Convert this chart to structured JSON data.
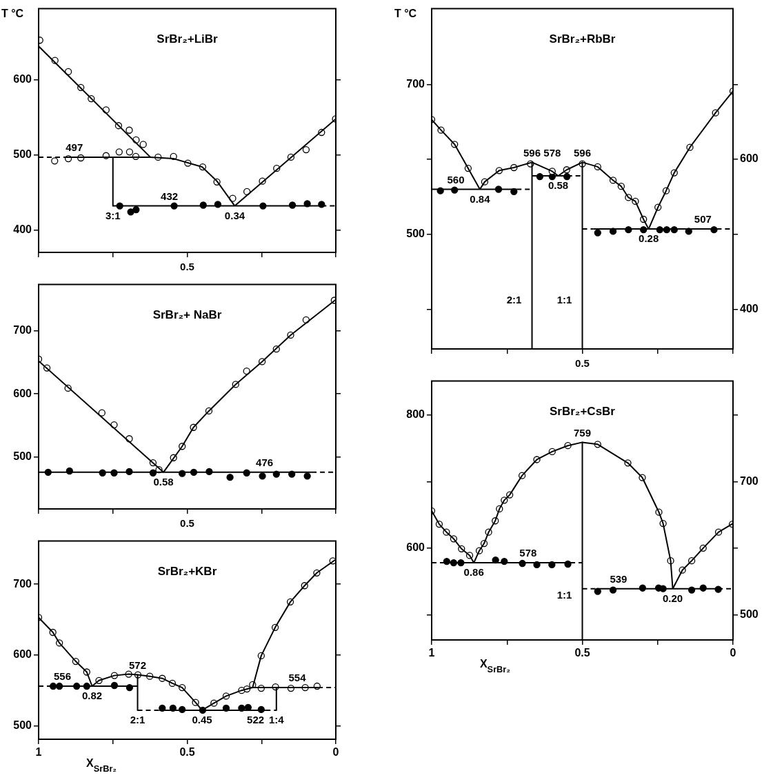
{
  "chart_data": [
    {
      "type": "scatter",
      "title": "SrBr₂+LiBr",
      "ylabel": "T °C",
      "tick_labels": "y",
      "xlim": [
        1,
        0
      ],
      "xticks": [
        {
          "value": 1,
          "label": null
        },
        {
          "value": 0.75,
          "label": null
        },
        0.5,
        {
          "value": 0.25,
          "label": null
        },
        {
          "value": 0,
          "label": null
        }
      ],
      "ylim": [
        370,
        695
      ],
      "yticks": [
        400,
        500,
        600
      ],
      "series": [
        {
          "type": "line",
          "color": "#000000",
          "marker": "none",
          "x": [
            1,
            0.624
          ],
          "values": [
            645,
            497
          ]
        },
        {
          "type": "line",
          "color": "#000000",
          "marker": "none",
          "x": [
            0.9,
            0.624,
            0.546,
            0.45,
            0.4,
            0.34
          ],
          "values": [
            497,
            497,
            495,
            484,
            465,
            432
          ]
        },
        {
          "type": "line",
          "color": "#000000",
          "marker": "none",
          "x": [
            0.34,
            0
          ],
          "values": [
            432,
            548
          ]
        },
        {
          "type": "line",
          "color": "#000000",
          "marker": "none",
          "line_style": "dashed",
          "x": [
            1,
            0.9
          ],
          "values": [
            497,
            497
          ]
        },
        {
          "type": "line",
          "color": "#000000",
          "marker": "none",
          "x": [
            0.75,
            0.75
          ],
          "values": [
            497,
            432
          ]
        },
        {
          "type": "line",
          "color": "#000000",
          "marker": "none",
          "x": [
            0.75,
            0.048
          ],
          "values": [
            432,
            432
          ]
        },
        {
          "type": "line",
          "color": "#000000",
          "marker": "none",
          "line_style": "dashed",
          "x": [
            0.048,
            0
          ],
          "values": [
            432,
            432
          ]
        },
        {
          "type": "scatter",
          "color": "#ffffff",
          "marker": "circle",
          "x": [
            0.996,
            0.945,
            0.9,
            0.858,
            0.823,
            0.773,
            0.731,
            0.695,
            0.672,
            0.648,
            0.946,
            0.9,
            0.858,
            0.773,
            0.729,
            0.694,
            0.673,
            0.598,
            0.546,
            0.498,
            0.448,
            0.4,
            0.347,
            0.299,
            0.247,
            0.199,
            0.151,
            0.1,
            0.048,
            0.001
          ],
          "values": [
            653,
            626,
            611,
            590,
            575,
            560,
            539,
            533,
            520,
            514,
            492,
            495,
            496,
            499,
            504,
            504,
            498,
            497,
            498,
            489,
            484,
            464,
            442,
            451,
            465,
            482,
            497,
            507,
            530,
            548
          ]
        },
        {
          "type": "scatter",
          "color": "#000000",
          "marker": "circle",
          "x": [
            0.727,
            0.69,
            0.672,
            0.544,
            0.446,
            0.397,
            0.245,
            0.146,
            0.096,
            0.048
          ],
          "values": [
            432,
            424,
            427,
            432,
            433,
            434,
            432,
            433,
            435,
            434
          ]
        }
      ],
      "annotations": [
        "0.5",
        {
          "text": "497",
          "x": 0.88,
          "y": 497
        },
        {
          "text": "432",
          "x": 0.56,
          "y": 432
        },
        {
          "text": "0.34",
          "x": 0.34,
          "y": 432
        },
        {
          "text": "3:1",
          "x": 0.75,
          "y": 432
        }
      ]
    },
    {
      "type": "scatter",
      "title": "SrBr₂+ NaBr",
      "tick_labels": "y",
      "xlim": [
        1,
        0
      ],
      "xticks": [
        {
          "value": 1,
          "label": null
        },
        {
          "value": 0.75,
          "label": null
        },
        0.5,
        {
          "value": 0.25,
          "label": null
        },
        {
          "value": 0,
          "label": null
        }
      ],
      "ylim": [
        418,
        773
      ],
      "yticks": [
        500,
        600,
        700
      ],
      "series": [
        {
          "type": "line",
          "color": "#000000",
          "marker": "none",
          "x": [
            1,
            0.58
          ],
          "values": [
            652,
            476
          ]
        },
        {
          "type": "line",
          "color": "#000000",
          "marker": "none",
          "x": [
            0.58,
            0.517,
            0.479,
            0.427,
            0.337,
            0.248,
            0.152,
            0
          ],
          "values": [
            476,
            517,
            547,
            573,
            615,
            651,
            693,
            749
          ]
        },
        {
          "type": "line",
          "color": "#000000",
          "marker": "none",
          "x": [
            1,
            0.081
          ],
          "values": [
            476,
            476
          ]
        },
        {
          "type": "line",
          "color": "#000000",
          "marker": "none",
          "line_style": "dashed",
          "x": [
            0.081,
            0
          ],
          "values": [
            476,
            476
          ]
        },
        {
          "type": "scatter",
          "color": "#ffffff",
          "marker": "circle",
          "x": [
            1,
            0.972,
            0.901,
            0.787,
            0.746,
            0.695,
            0.615,
            0.595,
            0.546,
            0.517,
            0.479,
            0.427,
            0.337,
            0.3,
            0.248,
            0.2,
            0.152,
            0.1,
            0.005
          ],
          "values": [
            655,
            641,
            609,
            570,
            551,
            529,
            491,
            480,
            499,
            517,
            547,
            573,
            615,
            636,
            651,
            671,
            693,
            717,
            748
          ]
        },
        {
          "type": "scatter",
          "color": "#000000",
          "marker": "circle",
          "x": [
            0.968,
            0.896,
            0.785,
            0.746,
            0.695,
            0.615,
            0.517,
            0.478,
            0.426,
            0.356,
            0.3,
            0.247,
            0.2,
            0.148,
            0.096
          ],
          "values": [
            476,
            478,
            475,
            475,
            477,
            475,
            474,
            476,
            477,
            468,
            475,
            470,
            473,
            473,
            470
          ]
        }
      ],
      "annotations": [
        "0.5",
        {
          "text": "476",
          "x": 0.24,
          "y": 476
        },
        {
          "text": "0.58",
          "x": 0.58,
          "y": 476
        }
      ]
    },
    {
      "type": "scatter",
      "title": "SrBr₂+KBr",
      "xlabel": "X$_{SrBr₂}$",
      "xlim": [
        1,
        0
      ],
      "xticks": [
        1,
        {
          "value": 0.75,
          "label": null
        },
        0.5,
        {
          "value": 0.25,
          "label": null
        },
        0
      ],
      "ylim": [
        481,
        761
      ],
      "yticks": [
        500,
        600,
        700
      ],
      "series": [
        {
          "type": "line",
          "color": "#000000",
          "marker": "none",
          "x": [
            1,
            0.952,
            0.93,
            0.875,
            0.838,
            0.82
          ],
          "values": [
            653,
            632,
            617,
            591,
            576,
            556
          ]
        },
        {
          "type": "line",
          "color": "#000000",
          "marker": "none",
          "x": [
            0.82,
            0.797,
            0.745,
            0.697,
            0.667,
            0.626,
            0.584,
            0.55,
            0.517,
            0.472,
            0.45
          ],
          "values": [
            556,
            564,
            571,
            573,
            572,
            570,
            567,
            560,
            554,
            533,
            522
          ]
        },
        {
          "type": "line",
          "color": "#000000",
          "marker": "none",
          "x": [
            0.45,
            0.41,
            0.369,
            0.317,
            0.28,
            0.251,
            0.204,
            0.153,
            0.105,
            0.064,
            0
          ],
          "values": [
            522,
            532,
            542,
            550,
            554,
            599,
            639,
            675,
            698,
            716,
            735
          ]
        },
        {
          "type": "line",
          "color": "#000000",
          "marker": "none",
          "line_style": "dashed",
          "x": [
            1,
            0.95
          ],
          "values": [
            556,
            556
          ]
        },
        {
          "type": "line",
          "color": "#000000",
          "marker": "none",
          "x": [
            0.95,
            0.667
          ],
          "values": [
            556,
            556
          ]
        },
        {
          "type": "line",
          "color": "#000000",
          "marker": "none",
          "x": [
            0.667,
            0.667
          ],
          "values": [
            572,
            522
          ]
        },
        {
          "type": "line",
          "color": "#000000",
          "marker": "none",
          "line_style": "dashed",
          "x": [
            0.667,
            0.594
          ],
          "values": [
            522,
            522
          ]
        },
        {
          "type": "line",
          "color": "#000000",
          "marker": "none",
          "x": [
            0.594,
            0.236
          ],
          "values": [
            522,
            522
          ]
        },
        {
          "type": "line",
          "color": "#000000",
          "marker": "none",
          "line_style": "dashed",
          "x": [
            0.236,
            0.2
          ],
          "values": [
            522,
            522
          ]
        },
        {
          "type": "line",
          "color": "#000000",
          "marker": "none",
          "x": [
            0.2,
            0.2
          ],
          "values": [
            554,
            522
          ]
        },
        {
          "type": "line",
          "color": "#000000",
          "marker": "none",
          "x": [
            0.28,
            0.06
          ],
          "values": [
            554,
            554
          ]
        },
        {
          "type": "line",
          "color": "#000000",
          "marker": "none",
          "line_style": "dashed",
          "x": [
            0.06,
            0
          ],
          "values": [
            554,
            554
          ]
        },
        {
          "type": "scatter",
          "color": "#ffffff",
          "marker": "circle",
          "x": [
            1,
            0.952,
            0.93,
            0.875,
            0.838,
            0.797,
            0.745,
            0.697,
            0.666,
            0.626,
            0.584,
            0.55,
            0.517,
            0.472,
            0.41,
            0.369,
            0.317,
            0.299,
            0.28,
            0.251,
            0.204,
            0.153,
            0.105,
            0.064,
            0.01,
            0.251,
            0.203,
            0.151,
            0.103,
            0.063
          ],
          "values": [
            653,
            632,
            617,
            591,
            576,
            564,
            571,
            573,
            572,
            570,
            567,
            560,
            554,
            533,
            532,
            542,
            550,
            552,
            558,
            599,
            639,
            675,
            698,
            716,
            733,
            553,
            555,
            553,
            554,
            556
          ]
        },
        {
          "type": "scatter",
          "color": "#000000",
          "marker": "circle",
          "x": [
            0.951,
            0.93,
            0.872,
            0.838,
            0.745,
            0.694,
            0.584,
            0.548,
            0.517,
            0.448,
            0.369,
            0.317,
            0.295,
            0.251
          ],
          "values": [
            556,
            556,
            556,
            556,
            557,
            554,
            525,
            525,
            523,
            522,
            525,
            525,
            526,
            523
          ]
        }
      ],
      "annotations": [
        {
          "text": "556",
          "x": 0.92,
          "y": 556
        },
        {
          "text": "572",
          "x": 0.667,
          "y": 572
        },
        {
          "text": "0.82",
          "x": 0.82,
          "y": 556
        },
        {
          "text": "0.45",
          "x": 0.45,
          "y": 522
        },
        {
          "text": "554",
          "x": 0.13,
          "y": 554
        },
        {
          "text": "522",
          "x": 0.27,
          "y": 522
        },
        {
          "text": "2:1",
          "x": 0.667,
          "y": 522
        },
        {
          "text": "1:4",
          "x": 0.2,
          "y": 522
        }
      ]
    },
    {
      "type": "scatter",
      "title": "SrBr₂+RbBr",
      "ylabel": "T °C",
      "tick_labels": "y",
      "xlim": [
        1,
        0
      ],
      "xticks": [
        {
          "value": 1,
          "label": null
        },
        {
          "value": 0.75,
          "label": null
        },
        0.5,
        {
          "value": 0.25,
          "label": null
        },
        {
          "value": 0,
          "label": null
        }
      ],
      "ylim": [
        347,
        801
      ],
      "yticks": [
        {
          "value": 400,
          "label": null
        },
        500,
        {
          "value": 600,
          "label": null
        },
        700
      ],
      "y2lim": [
        347,
        801
      ],
      "y2ticks": [
        400,
        {
          "value": 500,
          "label": null
        },
        600,
        {
          "value": 700,
          "label": null
        }
      ],
      "series": [
        {
          "type": "line",
          "color": "#000000",
          "marker": "none",
          "x": [
            1,
            0.969,
            0.924,
            0.879,
            0.84
          ],
          "values": [
            653,
            639,
            620,
            588,
            560
          ]
        },
        {
          "type": "line",
          "color": "#000000",
          "marker": "none",
          "x": [
            0.84,
            0.824,
            0.776,
            0.727,
            0.667,
            0.6,
            0.58
          ],
          "values": [
            560,
            570,
            585,
            589,
            596,
            584,
            578
          ]
        },
        {
          "type": "line",
          "color": "#000000",
          "marker": "none",
          "x": [
            0.58,
            0.552,
            0.5,
            0.449,
            0.398,
            0.371,
            0.347,
            0.324,
            0.297,
            0.28
          ],
          "values": [
            578,
            586,
            596,
            590,
            572,
            564,
            549,
            544,
            520,
            507
          ]
        },
        {
          "type": "line",
          "color": "#000000",
          "marker": "none",
          "x": [
            0.28,
            0.249,
            0.222,
            0.195,
            0.143,
            0.058,
            0
          ],
          "values": [
            507,
            536,
            558,
            582,
            616,
            662,
            691
          ]
        },
        {
          "type": "line",
          "color": "#000000",
          "marker": "none",
          "x": [
            1,
            0.718
          ],
          "values": [
            560,
            560
          ]
        },
        {
          "type": "line",
          "color": "#000000",
          "marker": "none",
          "line_style": "dashed",
          "x": [
            0.718,
            0.667
          ],
          "values": [
            560,
            560
          ]
        },
        {
          "type": "line",
          "color": "#000000",
          "marker": "none",
          "x": [
            0.667,
            0.667
          ],
          "values": [
            596,
            347
          ]
        },
        {
          "type": "line",
          "color": "#000000",
          "marker": "none",
          "x": [
            0.667,
            0.55
          ],
          "values": [
            578,
            578
          ]
        },
        {
          "type": "line",
          "color": "#000000",
          "marker": "none",
          "line_style": "dashed",
          "x": [
            0.55,
            0.5
          ],
          "values": [
            578,
            578
          ]
        },
        {
          "type": "line",
          "color": "#000000",
          "marker": "none",
          "x": [
            0.5,
            0.5
          ],
          "values": [
            596,
            347
          ]
        },
        {
          "type": "line",
          "color": "#000000",
          "marker": "none",
          "line_style": "dashed",
          "x": [
            0.5,
            0.463
          ],
          "values": [
            507,
            507
          ]
        },
        {
          "type": "line",
          "color": "#000000",
          "marker": "none",
          "x": [
            0.463,
            0.054
          ],
          "values": [
            507,
            507
          ]
        },
        {
          "type": "line",
          "color": "#000000",
          "marker": "none",
          "line_style": "dashed",
          "x": [
            0.054,
            0
          ],
          "values": [
            507,
            507
          ]
        },
        {
          "type": "scatter",
          "color": "#ffffff",
          "marker": "circle",
          "x": [
            1,
            0.969,
            0.924,
            0.879,
            0.824,
            0.776,
            0.727,
            0.672,
            0.6,
            0.552,
            0.5,
            0.449,
            0.398,
            0.371,
            0.347,
            0.324,
            0.297,
            0.249,
            0.222,
            0.195,
            0.143,
            0.058,
            0
          ],
          "values": [
            653,
            639,
            620,
            588,
            570,
            585,
            589,
            594,
            584,
            586,
            594,
            590,
            572,
            564,
            549,
            544,
            520,
            536,
            558,
            582,
            616,
            662,
            691
          ]
        },
        {
          "type": "scatter",
          "color": "#000000",
          "marker": "circle",
          "x": [
            0.971,
            0.924,
            0.778,
            0.727,
            0.641,
            0.6,
            0.551,
            0.449,
            0.398,
            0.347,
            0.297,
            0.243,
            0.22,
            0.195,
            0.147,
            0.063
          ],
          "values": [
            558,
            559,
            560,
            557,
            577,
            577,
            577,
            502,
            504,
            506,
            506,
            506,
            506,
            506,
            504,
            506
          ]
        }
      ],
      "annotations": [
        "0.5",
        {
          "text": "596",
          "x": 0.667,
          "y": 596
        },
        {
          "text": "0.58",
          "x": 0.58,
          "y": 578
        },
        {
          "text": "596",
          "x": 0.5,
          "y": 596
        },
        {
          "text": "0.84",
          "x": 0.84,
          "y": 560
        },
        {
          "text": "578",
          "x": 0.6,
          "y": 578
        },
        {
          "text": "560",
          "x": 0.92,
          "y": 560
        },
        {
          "text": "0.28",
          "x": 0.28,
          "y": 507
        },
        {
          "text": "507",
          "x": 0.1,
          "y": 507
        },
        {
          "text": "2:1",
          "x": 0.667,
          "y": 400
        },
        {
          "text": "1:1",
          "x": 0.5,
          "y": 400
        }
      ]
    },
    {
      "type": "scatter",
      "title": "SrBr₂+CsBr",
      "xlabel": "X$_{SrBr₂}$",
      "xlim": [
        1,
        0
      ],
      "xticks": [
        1,
        {
          "value": 0.75,
          "label": null
        },
        0.5,
        {
          "value": 0.25,
          "label": null
        },
        0
      ],
      "ylim": [
        462,
        851
      ],
      "yticks": [
        {
          "value": 500,
          "label": null
        },
        600,
        {
          "value": 700,
          "label": null
        },
        800
      ],
      "y2lim": [
        462,
        851
      ],
      "y2ticks": [
        500,
        {
          "value": 600,
          "label": null
        },
        700,
        {
          "value": 800,
          "label": null
        }
      ],
      "series": [
        {
          "type": "line",
          "color": "#000000",
          "marker": "none",
          "x": [
            1,
            0.975,
            0.951,
            0.927,
            0.901,
            0.874,
            0.86
          ],
          "values": [
            656,
            636,
            624,
            614,
            599,
            589,
            578
          ]
        },
        {
          "type": "line",
          "color": "#000000",
          "marker": "none",
          "x": [
            0.86,
            0.842,
            0.826,
            0.811,
            0.789,
            0.775,
            0.759,
            0.741,
            0.7,
            0.651,
            0.6,
            0.548,
            0.5,
            0.449,
            0.349,
            0.301,
            0.246,
            0.232,
            0.207,
            0.2
          ],
          "values": [
            578,
            596,
            607,
            624,
            641,
            659,
            672,
            680,
            709,
            733,
            745,
            754,
            759,
            756,
            728,
            706,
            654,
            637,
            581,
            539
          ]
        },
        {
          "type": "line",
          "color": "#000000",
          "marker": "none",
          "x": [
            0.2,
            0.168,
            0.137,
            0.099,
            0.048,
            0
          ],
          "values": [
            539,
            567,
            581,
            600,
            624,
            637
          ]
        },
        {
          "type": "line",
          "color": "#000000",
          "marker": "none",
          "line_style": "dashed",
          "x": [
            1,
            0.95
          ],
          "values": [
            578,
            578
          ]
        },
        {
          "type": "line",
          "color": "#000000",
          "marker": "none",
          "x": [
            0.95,
            0.54
          ],
          "values": [
            578,
            578
          ]
        },
        {
          "type": "line",
          "color": "#000000",
          "marker": "none",
          "line_style": "dashed",
          "x": [
            0.54,
            0.5
          ],
          "values": [
            578,
            578
          ]
        },
        {
          "type": "line",
          "color": "#000000",
          "marker": "none",
          "x": [
            0.5,
            0.5
          ],
          "values": [
            759,
            462
          ]
        },
        {
          "type": "line",
          "color": "#000000",
          "marker": "none",
          "line_style": "dashed",
          "x": [
            0.5,
            0.45
          ],
          "values": [
            539,
            539
          ]
        },
        {
          "type": "line",
          "color": "#000000",
          "marker": "none",
          "x": [
            0.45,
            0.05
          ],
          "values": [
            539,
            539
          ]
        },
        {
          "type": "line",
          "color": "#000000",
          "marker": "none",
          "line_style": "dashed",
          "x": [
            0.05,
            0
          ],
          "values": [
            539,
            539
          ]
        },
        {
          "type": "scatter",
          "color": "#ffffff",
          "marker": "circle",
          "x": [
            1,
            0.975,
            0.951,
            0.927,
            0.901,
            0.874,
            0.842,
            0.826,
            0.811,
            0.789,
            0.775,
            0.759,
            0.741,
            0.7,
            0.651,
            0.6,
            0.548,
            0.449,
            0.349,
            0.301,
            0.246,
            0.232,
            0.207,
            0.168,
            0.137,
            0.099,
            0.048,
            0.002
          ],
          "values": [
            656,
            636,
            624,
            614,
            599,
            589,
            596,
            607,
            624,
            641,
            659,
            672,
            680,
            709,
            733,
            745,
            754,
            756,
            728,
            706,
            654,
            637,
            581,
            567,
            581,
            600,
            624,
            636
          ]
        },
        {
          "type": "scatter",
          "color": "#000000",
          "marker": "circle",
          "x": [
            0.95,
            0.927,
            0.903,
            0.788,
            0.759,
            0.699,
            0.651,
            0.601,
            0.548,
            0.449,
            0.398,
            0.3,
            0.247,
            0.232,
            0.137,
            0.099,
            0.049
          ],
          "values": [
            580,
            578,
            578,
            582,
            580,
            577,
            575,
            575,
            576,
            535,
            537,
            540,
            540,
            539,
            537,
            540,
            538
          ]
        }
      ],
      "annotations": [
        {
          "text": "759",
          "x": 0.5,
          "y": 759
        },
        {
          "text": "0.86",
          "x": 0.86,
          "y": 578
        },
        {
          "text": "0.20",
          "x": 0.2,
          "y": 539
        },
        {
          "text": "578",
          "x": 0.68,
          "y": 578
        },
        {
          "text": "539",
          "x": 0.38,
          "y": 539
        },
        {
          "text": "1:1",
          "x": 0.5,
          "y": 515
        }
      ]
    }
  ]
}
